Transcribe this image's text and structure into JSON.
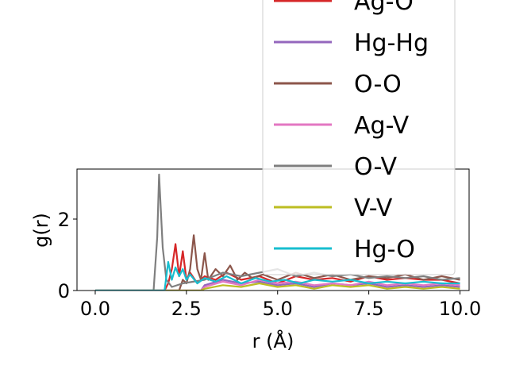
{
  "chart_data": {
    "type": "line",
    "xlabel": "r (Å)",
    "ylabel": "g(r)",
    "xlim": [
      -0.5,
      10.25
    ],
    "ylim": [
      0,
      3.4
    ],
    "x_ticks": [
      0.0,
      2.5,
      5.0,
      7.5,
      10.0
    ],
    "x_tick_labels": [
      "0.0",
      "2.5",
      "5.0",
      "7.5",
      "10.0"
    ],
    "y_ticks": [
      0,
      2
    ],
    "y_tick_labels": [
      "0",
      "2"
    ],
    "grid": false,
    "legend_position": "upper right, extending beyond the axes",
    "series": [
      {
        "name": "Ag-O",
        "color": "#d62728",
        "x": [
          0,
          1.9,
          2.0,
          2.1,
          2.2,
          2.3,
          2.4,
          2.5,
          2.6,
          2.8,
          3.0,
          3.3,
          3.6,
          4.0,
          4.5,
          5.0,
          5.5,
          6.0,
          6.5,
          7.0,
          7.5,
          8.0,
          8.5,
          9.0,
          9.5,
          10.0
        ],
        "y": [
          0,
          0,
          0.2,
          0.6,
          1.3,
          0.4,
          1.1,
          0.3,
          0.5,
          0.2,
          0.4,
          0.3,
          0.5,
          0.3,
          0.4,
          0.2,
          0.4,
          0.3,
          0.35,
          0.25,
          0.4,
          0.3,
          0.35,
          0.3,
          0.3,
          0.2
        ]
      },
      {
        "name": "Hg-Hg",
        "color": "#9467bd",
        "x": [
          0,
          2.9,
          3.0,
          3.5,
          4.0,
          4.5,
          5.0,
          5.5,
          6.0,
          6.5,
          7.0,
          7.5,
          8.0,
          8.5,
          9.0,
          9.5,
          10.0
        ],
        "y": [
          0,
          0,
          0.15,
          0.3,
          0.2,
          0.25,
          0.15,
          0.2,
          0.1,
          0.2,
          0.15,
          0.2,
          0.1,
          0.15,
          0.1,
          0.15,
          0.1
        ]
      },
      {
        "name": "O-O",
        "color": "#8c564b",
        "x": [
          0,
          2.3,
          2.4,
          2.5,
          2.6,
          2.7,
          2.8,
          2.9,
          3.0,
          3.1,
          3.3,
          3.5,
          3.7,
          3.9,
          4.1,
          4.3,
          4.6,
          5.0,
          5.5,
          6.0,
          6.5,
          7.0,
          7.5,
          8.0,
          8.5,
          9.0,
          9.5,
          10.0
        ],
        "y": [
          0,
          0,
          0.3,
          0.2,
          0.6,
          1.55,
          0.6,
          0.3,
          1.05,
          0.3,
          0.6,
          0.4,
          0.7,
          0.3,
          0.5,
          0.35,
          0.45,
          0.3,
          0.5,
          0.35,
          0.45,
          0.3,
          0.4,
          0.35,
          0.45,
          0.3,
          0.4,
          0.3
        ]
      },
      {
        "name": "Ag-V",
        "color": "#e377c2",
        "x": [
          0,
          2.9,
          3.0,
          3.5,
          4.0,
          4.5,
          5.0,
          5.5,
          6.0,
          6.5,
          7.0,
          7.5,
          8.0,
          8.5,
          9.0,
          9.5,
          10.0
        ],
        "y": [
          0,
          0,
          0.1,
          0.25,
          0.15,
          0.3,
          0.2,
          0.25,
          0.15,
          0.2,
          0.15,
          0.25,
          0.15,
          0.2,
          0.15,
          0.2,
          0.15
        ]
      },
      {
        "name": "O-V",
        "color": "#7f7f7f",
        "x": [
          0,
          1.6,
          1.7,
          1.75,
          1.85,
          1.95,
          2.1,
          2.4,
          3.0,
          3.5,
          4.0,
          4.5,
          5.0,
          5.5,
          6.0,
          6.5,
          7.0,
          7.5,
          8.0,
          8.5,
          9.0,
          9.5,
          10.0
        ],
        "y": [
          0,
          0,
          1.5,
          3.25,
          1.2,
          0.3,
          0.1,
          0.2,
          0.3,
          0.5,
          0.4,
          0.5,
          0.6,
          0.4,
          0.5,
          0.4,
          0.45,
          0.35,
          0.4,
          0.35,
          0.4,
          0.3,
          0.35
        ]
      },
      {
        "name": "V-V",
        "color": "#bcbd22",
        "x": [
          0,
          2.9,
          3.0,
          3.5,
          4.0,
          4.5,
          5.0,
          5.5,
          6.0,
          6.5,
          7.0,
          7.5,
          8.0,
          8.5,
          9.0,
          9.5,
          10.0
        ],
        "y": [
          0,
          0,
          0.05,
          0.15,
          0.1,
          0.2,
          0.1,
          0.15,
          0.05,
          0.15,
          0.1,
          0.15,
          0.05,
          0.1,
          0.05,
          0.1,
          0.05
        ]
      },
      {
        "name": "Hg-O",
        "color": "#17becf",
        "x": [
          0,
          1.9,
          2.0,
          2.1,
          2.2,
          2.3,
          2.4,
          2.5,
          2.6,
          2.8,
          3.0,
          3.3,
          3.6,
          4.0,
          4.4,
          4.8,
          5.2,
          5.6,
          6.0,
          6.5,
          7.0,
          7.5,
          8.0,
          8.5,
          9.0,
          9.5,
          10.0
        ],
        "y": [
          0,
          0,
          0.8,
          0.3,
          0.65,
          0.4,
          0.6,
          0.3,
          0.45,
          0.2,
          0.35,
          0.25,
          0.4,
          0.2,
          0.35,
          0.25,
          0.3,
          0.2,
          0.3,
          0.25,
          0.3,
          0.2,
          0.25,
          0.2,
          0.25,
          0.2,
          0.2
        ]
      }
    ]
  }
}
